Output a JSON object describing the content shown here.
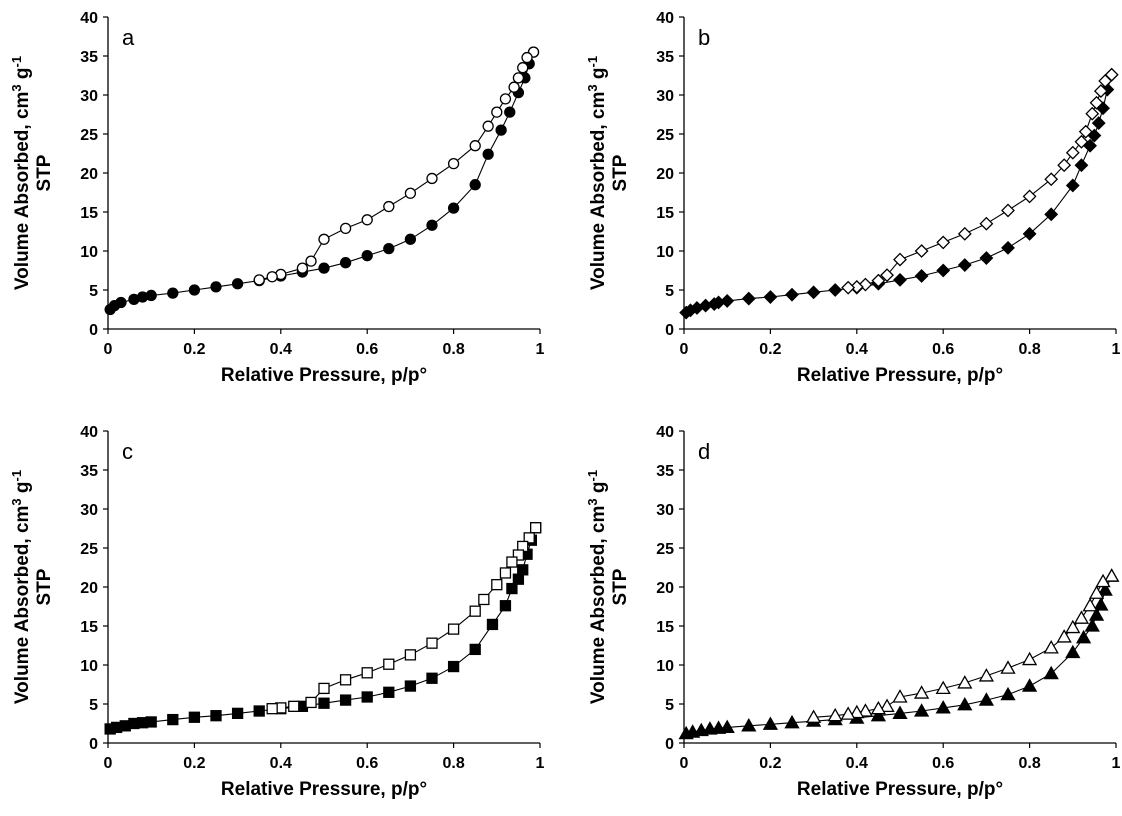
{
  "chart_data": [
    {
      "type": "scatter",
      "panel_label": "a",
      "xlabel": "Relative Pressure,  p/p°",
      "ylabel_main": "Volume Absorbed, cm",
      "ylabel_sup1": "3",
      "ylabel_mid": " g",
      "ylabel_sup2": "-1",
      "ylabel_line2": "STP",
      "xlim": [
        0,
        1
      ],
      "ylim": [
        0,
        40
      ],
      "xticks": [
        "0",
        "0.2",
        "0.4",
        "0.6",
        "0.8",
        "1"
      ],
      "yticks": [
        "0",
        "5",
        "10",
        "15",
        "20",
        "25",
        "30",
        "35",
        "40"
      ],
      "marker": "circle",
      "grid": false,
      "series": [
        {
          "fill": "filled",
          "points": [
            [
              0.005,
              2.5
            ],
            [
              0.015,
              3.0
            ],
            [
              0.03,
              3.4
            ],
            [
              0.06,
              3.8
            ],
            [
              0.08,
              4.1
            ],
            [
              0.1,
              4.3
            ],
            [
              0.15,
              4.6
            ],
            [
              0.2,
              5.0
            ],
            [
              0.25,
              5.4
            ],
            [
              0.3,
              5.8
            ],
            [
              0.35,
              6.2
            ],
            [
              0.4,
              6.8
            ],
            [
              0.45,
              7.3
            ],
            [
              0.5,
              7.8
            ],
            [
              0.55,
              8.5
            ],
            [
              0.6,
              9.4
            ],
            [
              0.65,
              10.3
            ],
            [
              0.7,
              11.5
            ],
            [
              0.75,
              13.3
            ],
            [
              0.8,
              15.5
            ],
            [
              0.85,
              18.5
            ],
            [
              0.88,
              22.4
            ],
            [
              0.91,
              25.5
            ],
            [
              0.93,
              27.8
            ],
            [
              0.95,
              30.3
            ],
            [
              0.965,
              32.2
            ],
            [
              0.975,
              34.0
            ],
            [
              0.985,
              35.5
            ]
          ]
        },
        {
          "fill": "hollow",
          "points": [
            [
              0.985,
              35.5
            ],
            [
              0.97,
              34.8
            ],
            [
              0.96,
              33.5
            ],
            [
              0.95,
              32.2
            ],
            [
              0.94,
              31.0
            ],
            [
              0.92,
              29.5
            ],
            [
              0.9,
              27.8
            ],
            [
              0.88,
              26.0
            ],
            [
              0.85,
              23.5
            ],
            [
              0.8,
              21.2
            ],
            [
              0.75,
              19.3
            ],
            [
              0.7,
              17.4
            ],
            [
              0.65,
              15.7
            ],
            [
              0.6,
              14.0
            ],
            [
              0.55,
              12.9
            ],
            [
              0.5,
              11.5
            ],
            [
              0.47,
              8.7
            ],
            [
              0.45,
              7.8
            ],
            [
              0.4,
              7.0
            ],
            [
              0.38,
              6.7
            ],
            [
              0.35,
              6.3
            ]
          ]
        }
      ]
    },
    {
      "type": "scatter",
      "panel_label": "b",
      "xlabel": "Relative Pressure,  p/p°",
      "ylabel_main": "Volume Absorbed, cm",
      "ylabel_sup1": "3",
      "ylabel_mid": " g",
      "ylabel_sup2": "-1",
      "ylabel_line2": "STP",
      "xlim": [
        0,
        1
      ],
      "ylim": [
        0,
        40
      ],
      "xticks": [
        "0",
        "0.2",
        "0.4",
        "0.6",
        "0.8",
        "1"
      ],
      "yticks": [
        "0",
        "5",
        "10",
        "15",
        "20",
        "25",
        "30",
        "35",
        "40"
      ],
      "marker": "diamond",
      "grid": false,
      "series": [
        {
          "fill": "filled",
          "points": [
            [
              0.005,
              2.1
            ],
            [
              0.015,
              2.4
            ],
            [
              0.03,
              2.7
            ],
            [
              0.05,
              3.0
            ],
            [
              0.07,
              3.2
            ],
            [
              0.08,
              3.4
            ],
            [
              0.1,
              3.6
            ],
            [
              0.15,
              3.9
            ],
            [
              0.2,
              4.1
            ],
            [
              0.25,
              4.4
            ],
            [
              0.3,
              4.7
            ],
            [
              0.35,
              5.0
            ],
            [
              0.4,
              5.3
            ],
            [
              0.45,
              5.8
            ],
            [
              0.5,
              6.3
            ],
            [
              0.55,
              6.8
            ],
            [
              0.6,
              7.5
            ],
            [
              0.65,
              8.2
            ],
            [
              0.7,
              9.1
            ],
            [
              0.75,
              10.4
            ],
            [
              0.8,
              12.2
            ],
            [
              0.85,
              14.7
            ],
            [
              0.9,
              18.4
            ],
            [
              0.92,
              21.0
            ],
            [
              0.94,
              23.5
            ],
            [
              0.95,
              24.8
            ],
            [
              0.96,
              26.4
            ],
            [
              0.97,
              28.3
            ],
            [
              0.98,
              30.7
            ],
            [
              0.99,
              32.6
            ]
          ]
        },
        {
          "fill": "hollow",
          "points": [
            [
              0.99,
              32.6
            ],
            [
              0.975,
              31.8
            ],
            [
              0.965,
              30.5
            ],
            [
              0.955,
              29.0
            ],
            [
              0.945,
              27.6
            ],
            [
              0.93,
              25.3
            ],
            [
              0.92,
              24.0
            ],
            [
              0.9,
              22.6
            ],
            [
              0.88,
              21.0
            ],
            [
              0.85,
              19.2
            ],
            [
              0.8,
              17.0
            ],
            [
              0.75,
              15.2
            ],
            [
              0.7,
              13.5
            ],
            [
              0.65,
              12.2
            ],
            [
              0.6,
              11.1
            ],
            [
              0.55,
              10.0
            ],
            [
              0.5,
              8.9
            ],
            [
              0.47,
              6.9
            ],
            [
              0.45,
              6.2
            ],
            [
              0.42,
              5.7
            ],
            [
              0.4,
              5.4
            ],
            [
              0.38,
              5.3
            ]
          ]
        }
      ]
    },
    {
      "type": "scatter",
      "panel_label": "c",
      "xlabel": "Relative Pressure,  p/p°",
      "ylabel_main": "Volume Absorbed, cm",
      "ylabel_sup1": "3",
      "ylabel_mid": " g",
      "ylabel_sup2": "-1",
      "ylabel_line2": "STP",
      "xlim": [
        0,
        1
      ],
      "ylim": [
        0,
        40
      ],
      "xticks": [
        "0",
        "0.2",
        "0.4",
        "0.6",
        "0.8",
        "1"
      ],
      "yticks": [
        "0",
        "5",
        "10",
        "15",
        "20",
        "25",
        "30",
        "35",
        "40"
      ],
      "marker": "square",
      "grid": false,
      "series": [
        {
          "fill": "filled",
          "points": [
            [
              0.005,
              1.8
            ],
            [
              0.02,
              2.0
            ],
            [
              0.04,
              2.2
            ],
            [
              0.06,
              2.5
            ],
            [
              0.08,
              2.6
            ],
            [
              0.1,
              2.7
            ],
            [
              0.15,
              3.0
            ],
            [
              0.2,
              3.3
            ],
            [
              0.25,
              3.5
            ],
            [
              0.3,
              3.8
            ],
            [
              0.35,
              4.1
            ],
            [
              0.4,
              4.4
            ],
            [
              0.45,
              4.7
            ],
            [
              0.5,
              5.1
            ],
            [
              0.55,
              5.5
            ],
            [
              0.6,
              5.9
            ],
            [
              0.65,
              6.5
            ],
            [
              0.7,
              7.3
            ],
            [
              0.75,
              8.3
            ],
            [
              0.8,
              9.8
            ],
            [
              0.85,
              12.0
            ],
            [
              0.89,
              15.2
            ],
            [
              0.92,
              17.6
            ],
            [
              0.935,
              19.8
            ],
            [
              0.95,
              21.0
            ],
            [
              0.96,
              22.2
            ],
            [
              0.97,
              24.2
            ],
            [
              0.98,
              26.0
            ],
            [
              0.99,
              27.6
            ]
          ]
        },
        {
          "fill": "hollow",
          "points": [
            [
              0.99,
              27.6
            ],
            [
              0.975,
              26.3
            ],
            [
              0.96,
              25.2
            ],
            [
              0.95,
              24.1
            ],
            [
              0.935,
              23.2
            ],
            [
              0.92,
              21.8
            ],
            [
              0.9,
              20.3
            ],
            [
              0.87,
              18.4
            ],
            [
              0.85,
              16.9
            ],
            [
              0.8,
              14.6
            ],
            [
              0.75,
              12.8
            ],
            [
              0.7,
              11.3
            ],
            [
              0.65,
              10.1
            ],
            [
              0.6,
              9.0
            ],
            [
              0.55,
              8.1
            ],
            [
              0.5,
              7.0
            ],
            [
              0.47,
              5.2
            ],
            [
              0.43,
              4.7
            ],
            [
              0.4,
              4.5
            ],
            [
              0.38,
              4.4
            ]
          ]
        }
      ]
    },
    {
      "type": "scatter",
      "panel_label": "d",
      "xlabel": "Relative Pressure,  p/p°",
      "ylabel_main": "Volume Absorbed, cm",
      "ylabel_sup1": "3",
      "ylabel_mid": " g",
      "ylabel_sup2": "-1",
      "ylabel_line2": "STP",
      "xlim": [
        0,
        1
      ],
      "ylim": [
        0,
        40
      ],
      "xticks": [
        "0",
        "0.2",
        "0.4",
        "0.6",
        "0.8",
        "1"
      ],
      "yticks": [
        "0",
        "5",
        "10",
        "15",
        "20",
        "25",
        "30",
        "35",
        "40"
      ],
      "marker": "triangle",
      "grid": false,
      "series": [
        {
          "fill": "filled",
          "points": [
            [
              0.005,
              1.2
            ],
            [
              0.02,
              1.4
            ],
            [
              0.04,
              1.6
            ],
            [
              0.06,
              1.8
            ],
            [
              0.08,
              1.9
            ],
            [
              0.1,
              2.0
            ],
            [
              0.15,
              2.2
            ],
            [
              0.2,
              2.4
            ],
            [
              0.25,
              2.6
            ],
            [
              0.3,
              2.8
            ],
            [
              0.35,
              3.0
            ],
            [
              0.4,
              3.2
            ],
            [
              0.45,
              3.5
            ],
            [
              0.5,
              3.8
            ],
            [
              0.55,
              4.1
            ],
            [
              0.6,
              4.5
            ],
            [
              0.65,
              4.9
            ],
            [
              0.7,
              5.5
            ],
            [
              0.75,
              6.2
            ],
            [
              0.8,
              7.3
            ],
            [
              0.85,
              8.9
            ],
            [
              0.9,
              11.6
            ],
            [
              0.925,
              13.5
            ],
            [
              0.945,
              15.0
            ],
            [
              0.955,
              16.4
            ],
            [
              0.965,
              17.7
            ],
            [
              0.975,
              19.6
            ],
            [
              0.99,
              21.4
            ]
          ]
        },
        {
          "fill": "hollow",
          "points": [
            [
              0.99,
              21.4
            ],
            [
              0.97,
              20.7
            ],
            [
              0.955,
              19.2
            ],
            [
              0.94,
              17.6
            ],
            [
              0.92,
              16.0
            ],
            [
              0.9,
              14.8
            ],
            [
              0.88,
              13.6
            ],
            [
              0.85,
              12.2
            ],
            [
              0.8,
              10.7
            ],
            [
              0.75,
              9.6
            ],
            [
              0.7,
              8.6
            ],
            [
              0.65,
              7.7
            ],
            [
              0.6,
              7.0
            ],
            [
              0.55,
              6.4
            ],
            [
              0.5,
              5.9
            ],
            [
              0.47,
              4.7
            ],
            [
              0.45,
              4.4
            ],
            [
              0.42,
              4.1
            ],
            [
              0.4,
              3.9
            ],
            [
              0.38,
              3.7
            ],
            [
              0.35,
              3.5
            ],
            [
              0.3,
              3.3
            ]
          ]
        }
      ]
    }
  ]
}
